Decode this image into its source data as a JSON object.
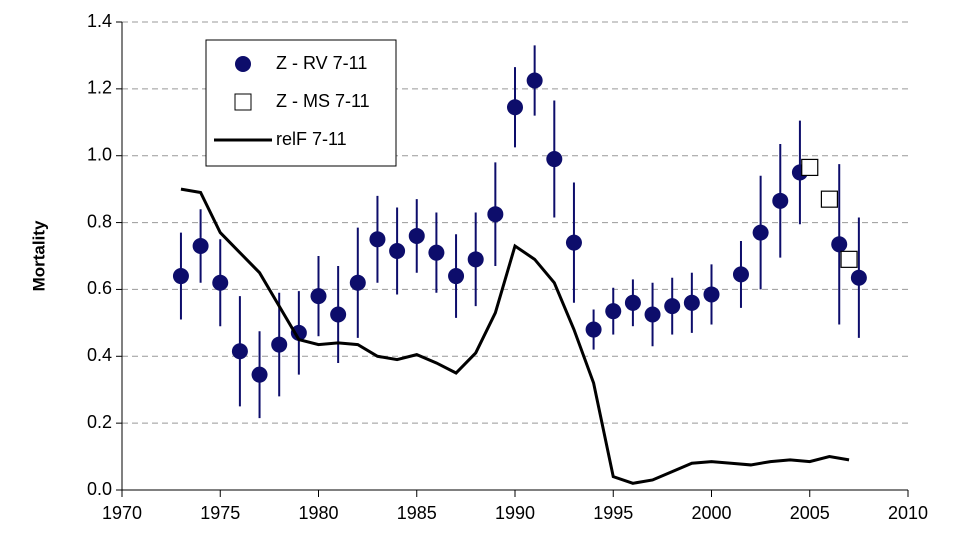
{
  "chart_data": {
    "type": "scatter-line",
    "y_label": "Mortality",
    "xlim": [
      1970,
      2010
    ],
    "xticks": [
      1970,
      1975,
      1980,
      1985,
      1990,
      1995,
      2000,
      2005,
      2010
    ],
    "ylim": [
      0,
      1.4
    ],
    "yticks": [
      {
        "value": 0,
        "label": "0.0"
      },
      {
        "value": 0.2,
        "label": "0.2"
      },
      {
        "value": 0.4,
        "label": "0.4"
      },
      {
        "value": 0.6,
        "label": "0.6"
      },
      {
        "value": 0.8,
        "label": "0.8"
      },
      {
        "value": 1,
        "label": "1.0"
      },
      {
        "value": 1.2,
        "label": "1.2"
      },
      {
        "value": 1.4,
        "label": "1.4"
      }
    ],
    "grid": true,
    "series": [
      {
        "name": "Z - RV 7-11",
        "kind": "points",
        "color": "#0d0d6b",
        "x": [
          1973,
          1974,
          1975,
          1976,
          1977,
          1978,
          1979,
          1980,
          1981,
          1982,
          1983,
          1984,
          1985,
          1986,
          1987,
          1988,
          1989,
          1990,
          1991,
          1992,
          1993,
          1994,
          1995,
          1996,
          1997,
          1998,
          1999,
          2000,
          2001.5,
          2002.5,
          2003.5,
          2004.5,
          2006.5,
          2007.5
        ],
        "values": [
          0.64,
          0.73,
          0.62,
          0.415,
          0.345,
          0.435,
          0.47,
          0.58,
          0.525,
          0.62,
          0.75,
          0.715,
          0.76,
          0.71,
          0.64,
          0.69,
          0.825,
          1.145,
          1.225,
          0.99,
          0.74,
          0.48,
          0.535,
          0.56,
          0.525,
          0.55,
          0.56,
          0.585,
          0.645,
          0.77,
          0.865,
          0.95,
          0.735,
          0.635
        ],
        "errors": [
          0.13,
          0.11,
          0.13,
          0.165,
          0.13,
          0.155,
          0.125,
          0.12,
          0.145,
          0.165,
          0.13,
          0.13,
          0.11,
          0.12,
          0.125,
          0.14,
          0.155,
          0.12,
          0.105,
          0.175,
          0.18,
          0.06,
          0.07,
          0.07,
          0.095,
          0.085,
          0.09,
          0.09,
          0.1,
          0.17,
          0.17,
          0.155,
          0.24,
          0.18
        ]
      },
      {
        "name": "Z - MS 7-11",
        "kind": "squares",
        "color": "#ffffff",
        "x": [
          2005,
          2006,
          2007
        ],
        "values": [
          0.965,
          0.87,
          0.69
        ]
      },
      {
        "name": "relF 7-11",
        "kind": "line",
        "color": "#000000",
        "x": [
          1973,
          1974,
          1975,
          1976,
          1977,
          1978,
          1979,
          1980,
          1981,
          1982,
          1983,
          1984,
          1985,
          1986,
          1987,
          1988,
          1989,
          1990,
          1991,
          1992,
          1993,
          1994,
          1995,
          1996,
          1997,
          1998,
          1999,
          2000,
          2001,
          2002,
          2003,
          2004,
          2005,
          2006,
          2007
        ],
        "values": [
          0.9,
          0.89,
          0.77,
          0.71,
          0.65,
          0.55,
          0.45,
          0.435,
          0.44,
          0.435,
          0.4,
          0.39,
          0.405,
          0.38,
          0.35,
          0.41,
          0.53,
          0.73,
          0.69,
          0.62,
          0.48,
          0.32,
          0.04,
          0.02,
          0.03,
          0.055,
          0.08,
          0.085,
          0.08,
          0.075,
          0.085,
          0.09,
          0.085,
          0.1,
          0.09
        ]
      }
    ]
  }
}
